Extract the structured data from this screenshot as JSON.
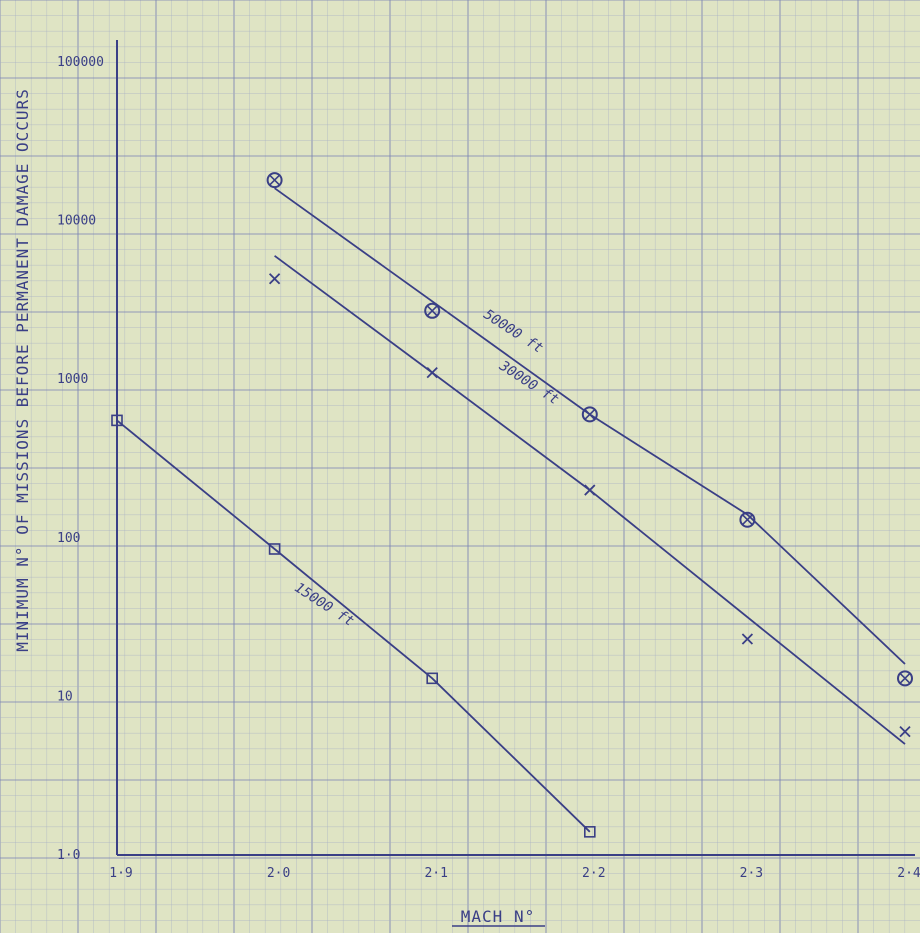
{
  "chart_data": {
    "type": "line",
    "title": "",
    "xlabel": "MACH N°",
    "ylabel": "MINIMUM N° OF MISSIONS BEFORE PERMANENT DAMAGE OCCURS",
    "x_scale": "linear",
    "y_scale": "log",
    "xlim": [
      1.9,
      2.4
    ],
    "ylim": [
      1.0,
      100000
    ],
    "x_ticks": [
      "1·9",
      "2·0",
      "2·1",
      "2·2",
      "2·3",
      "2·4"
    ],
    "x_tick_values": [
      1.9,
      2.0,
      2.1,
      2.2,
      2.3,
      2.4
    ],
    "y_ticks": [
      "1·0",
      "10",
      "100",
      "1000",
      "10000",
      "100000"
    ],
    "y_tick_values": [
      1,
      10,
      100,
      1000,
      10000,
      100000
    ],
    "grid": true,
    "series": [
      {
        "name": "50000 ft",
        "marker": "circle-cross",
        "points": [
          {
            "x": 2.0,
            "y": 18000
          },
          {
            "x": 2.1,
            "y": 2700
          },
          {
            "x": 2.2,
            "y": 600
          },
          {
            "x": 2.3,
            "y": 130
          },
          {
            "x": 2.4,
            "y": 13
          }
        ],
        "line": [
          [
            2.0,
            16000
          ],
          [
            2.2,
            600
          ],
          [
            2.3,
            140
          ],
          [
            2.4,
            16
          ]
        ]
      },
      {
        "name": "30000 ft",
        "marker": "x",
        "points": [
          {
            "x": 2.0,
            "y": 4300
          },
          {
            "x": 2.1,
            "y": 1100
          },
          {
            "x": 2.2,
            "y": 200
          },
          {
            "x": 2.3,
            "y": 23
          },
          {
            "x": 2.4,
            "y": 6
          }
        ],
        "line": [
          [
            2.0,
            6000
          ],
          [
            2.1,
            1100
          ],
          [
            2.2,
            200
          ],
          [
            2.4,
            5
          ]
        ]
      },
      {
        "name": "15000 ft",
        "marker": "square",
        "points": [
          {
            "x": 1.9,
            "y": 550
          },
          {
            "x": 2.0,
            "y": 85
          },
          {
            "x": 2.1,
            "y": 13
          },
          {
            "x": 2.2,
            "y": 1.4
          }
        ],
        "line": [
          [
            1.9,
            550
          ],
          [
            2.0,
            85
          ],
          [
            2.1,
            13
          ],
          [
            2.2,
            1.4
          ]
        ]
      }
    ],
    "colors": {
      "paper": "#dfe4c4",
      "ink": "#3a3f86",
      "grid_minor": "#a8b0c4",
      "grid_major": "#7d86b4"
    }
  }
}
